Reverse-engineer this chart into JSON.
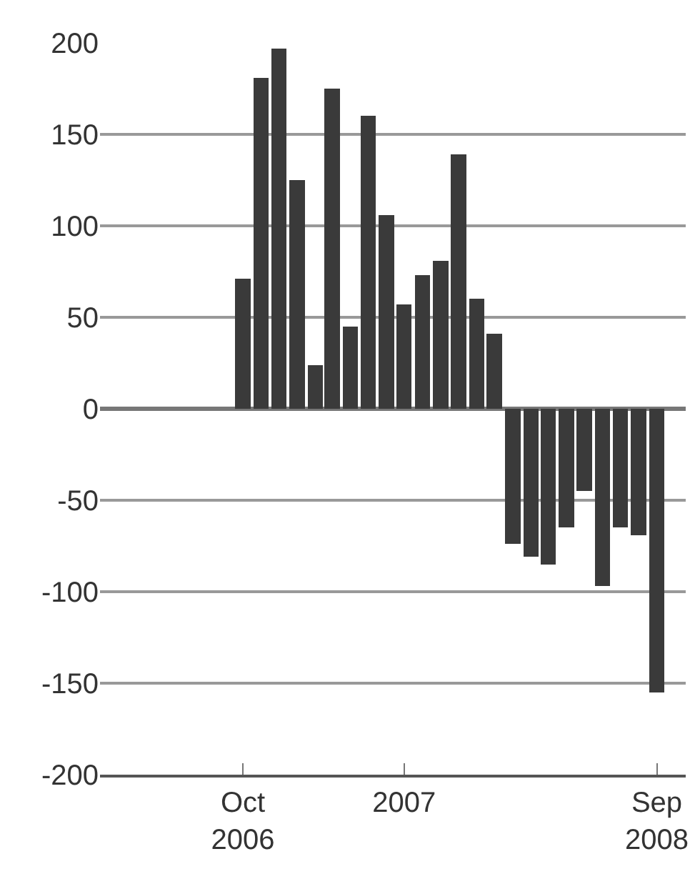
{
  "chart_data": {
    "type": "bar",
    "x": [
      "2006-10",
      "2006-11",
      "2006-12",
      "2007-01",
      "2007-02",
      "2007-03",
      "2007-04",
      "2007-05",
      "2007-06",
      "2007-07",
      "2007-08",
      "2007-09",
      "2007-10",
      "2007-11",
      "2007-12",
      "2008-01",
      "2008-02",
      "2008-03",
      "2008-04",
      "2008-05",
      "2008-06",
      "2008-07",
      "2008-08",
      "2008-09"
    ],
    "values": [
      71,
      181,
      197,
      125,
      24,
      175,
      45,
      160,
      106,
      57,
      73,
      81,
      139,
      60,
      41,
      -74,
      -81,
      -85,
      -65,
      -45,
      -97,
      -65,
      -69,
      -155
    ],
    "color": "#3a3a3a",
    "xlim": [
      "2006-02-01",
      "2008-10-20"
    ],
    "xticks": [
      {
        "value": "2006-10",
        "label": "Oct\n2006"
      },
      {
        "value": "2007-07",
        "label": "2007"
      },
      {
        "value": "2008-09",
        "label": "Sep\n2008"
      }
    ],
    "ylim": [
      -200,
      200
    ],
    "yticks": [
      -200,
      -150,
      -100,
      -50,
      0,
      50,
      100,
      150,
      200
    ],
    "grid": "y"
  }
}
